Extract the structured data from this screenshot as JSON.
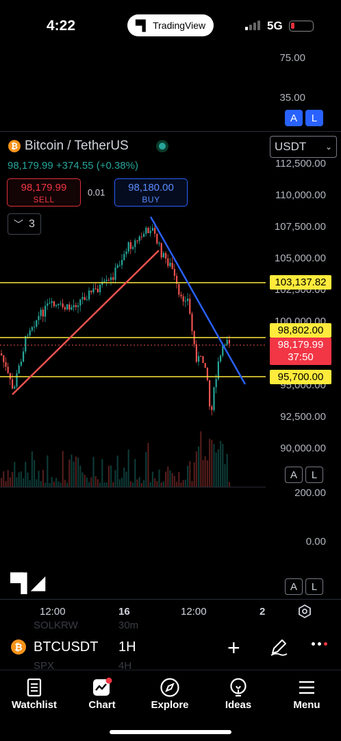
{
  "status_bar": {
    "time": "4:22",
    "app_pill": "TradingView",
    "network": "5G"
  },
  "upper_pane": {
    "ticks": [
      "75.00",
      "35.00"
    ],
    "buttons": [
      "A",
      "L"
    ]
  },
  "header": {
    "symbol_title": "Bitcoin / TetherUS",
    "price_line": "98,179.99 +374.55 (+0.38%)",
    "currency": "USDT",
    "sell": {
      "price": "98,179.99",
      "label": "SELL"
    },
    "spread": "0.01",
    "buy": {
      "price": "98,180.00",
      "label": "BUY"
    },
    "collapse_count": "3"
  },
  "price_scale": {
    "ticks": [
      "112,500.00",
      "110,000.00",
      "107,500.00",
      "105,000.00",
      "102,500.00",
      "100,000.00",
      "95,000.00",
      "92,500.00",
      "90,000.00"
    ],
    "levels": [
      "103,137.82",
      "98,802.00",
      "95,700.00"
    ],
    "current_price": "98,179.99",
    "countdown": "37:50",
    "buttons": [
      "A",
      "L"
    ]
  },
  "volume_scale": {
    "ticks": [
      "200.00",
      "0.00"
    ],
    "buttons": [
      "A",
      "L"
    ]
  },
  "time_axis": {
    "labels": [
      "12:00",
      "16",
      "12:00",
      "2"
    ]
  },
  "colors": {
    "up": "#26a69a",
    "down": "#ef5350",
    "level": "#ffeb3b",
    "trend_up": "#ef5350",
    "trend_down": "#2962ff"
  },
  "symbol_bar": {
    "ghost_items": [
      "SOLKRW",
      "30m",
      "SPX",
      "4H"
    ],
    "symbol": "BTCUSDT",
    "timeframe": "1H",
    "coin_glyph": "₿"
  },
  "bottom_nav": [
    {
      "label": "Watchlist",
      "icon": "watchlist-icon"
    },
    {
      "label": "Chart",
      "icon": "chart-icon"
    },
    {
      "label": "Explore",
      "icon": "compass-icon"
    },
    {
      "label": "Ideas",
      "icon": "lightbulb-icon"
    },
    {
      "label": "Menu",
      "icon": "menu-icon"
    }
  ]
}
